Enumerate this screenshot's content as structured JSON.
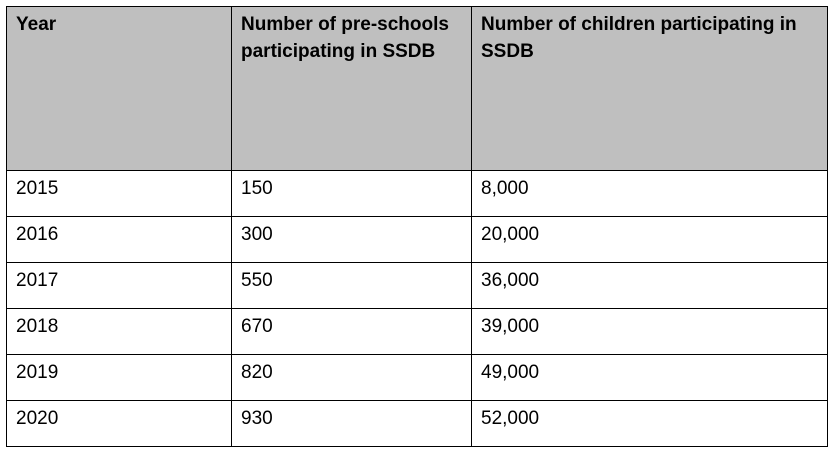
{
  "table": {
    "headers": [
      "Year",
      "Number of pre-schools participating in SSDB",
      "Number of children participating in SSDB"
    ],
    "rows": [
      [
        "2015",
        "150",
        "8,000"
      ],
      [
        "2016",
        "300",
        "20,000"
      ],
      [
        "2017",
        "550",
        "36,000"
      ],
      [
        "2018",
        "670",
        "39,000"
      ],
      [
        "2019",
        "820",
        "49,000"
      ],
      [
        "2020",
        "930",
        "52,000"
      ]
    ],
    "header_bg": "#bfbfbf",
    "border_color": "#000000"
  }
}
